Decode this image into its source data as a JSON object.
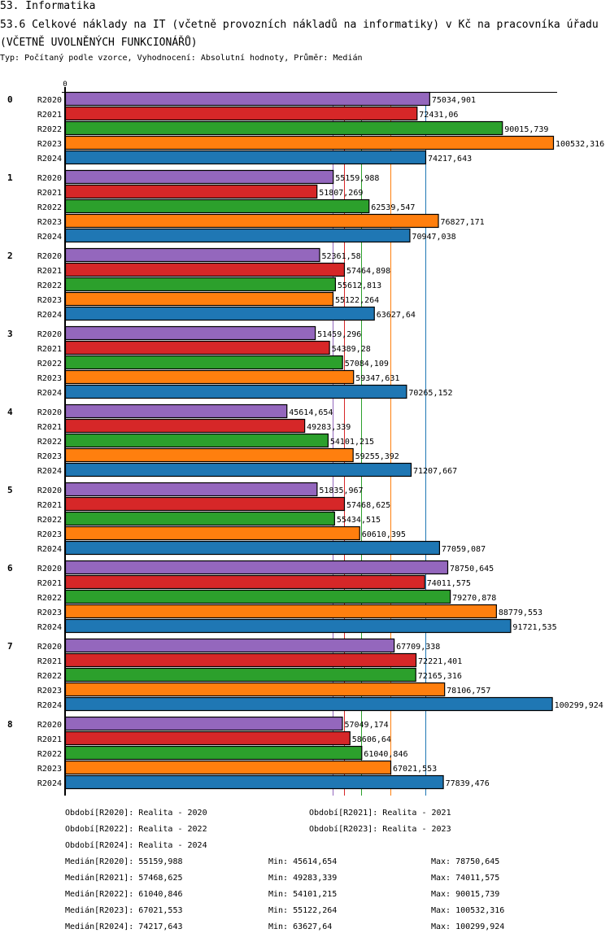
{
  "header": {
    "section": "53. Informatika",
    "title": "53.6 Celkové náklady na IT (včetně provozních nákladů na informatiky) v Kč na pracovníka úřadu (VČETNĚ UVOLNĚNÝCH FUNKCIONÁŘŮ)",
    "subtitle": "Typ: Počítaný podle vzorce, Vyhodnocení: Absolutní hodnoty, Průměr: Medián"
  },
  "chart_data": {
    "type": "bar",
    "orientation": "horizontal",
    "title": "53.6 Celkové náklady na IT (včetně provozních nákladů na informatiky) v Kč na pracovníka úřadu (VČETNĚ UVOLNĚNÝCH FUNKCIONÁŘŮ)",
    "xlabel": "",
    "ylabel": "",
    "x_tick_labels": [
      "0"
    ],
    "xlim": [
      0,
      100532.316
    ],
    "grid": false,
    "categories": [
      "0",
      "1",
      "2",
      "3",
      "4",
      "5",
      "6",
      "7",
      "8"
    ],
    "series": [
      {
        "name": "R2020",
        "color": "#9467bd",
        "value_labels": [
          "75034,901",
          "55159,988",
          "52361,58",
          "51459,296",
          "45614,654",
          "51835,967",
          "78750,645",
          "67709,338",
          "57049,174"
        ],
        "values": [
          75034.901,
          55159.988,
          52361.58,
          51459.296,
          45614.654,
          51835.967,
          78750.645,
          67709.338,
          57049.174
        ],
        "median": 55159.988
      },
      {
        "name": "R2021",
        "color": "#d62728",
        "value_labels": [
          "72431,06",
          "51807,269",
          "57464,898",
          "54389,28",
          "49283,339",
          "57468,625",
          "74011,575",
          "72221,401",
          "58606,64"
        ],
        "values": [
          72431.06,
          51807.269,
          57464.898,
          54389.28,
          49283.339,
          57468.625,
          74011.575,
          72221.401,
          58606.64
        ],
        "median": 57468.625
      },
      {
        "name": "R2022",
        "color": "#2ca02c",
        "value_labels": [
          "90015,739",
          "62539,547",
          "55612,813",
          "57084,109",
          "54101,215",
          "55434,515",
          "79270,878",
          "72165,316",
          "61040,846"
        ],
        "values": [
          90015.739,
          62539.547,
          55612.813,
          57084.109,
          54101.215,
          55434.515,
          79270.878,
          72165.316,
          61040.846
        ],
        "median": 61040.846
      },
      {
        "name": "R2023",
        "color": "#ff7f0e",
        "value_labels": [
          "100532,316",
          "76827,171",
          "55122,264",
          "59347,631",
          "59255,392",
          "60610,395",
          "88779,553",
          "78106,757",
          "67021,553"
        ],
        "values": [
          100532.316,
          76827.171,
          55122.264,
          59347.631,
          59255.392,
          60610.395,
          88779.553,
          78106.757,
          67021.553
        ],
        "median": 67021.553
      },
      {
        "name": "R2024",
        "color": "#1f77b4",
        "value_labels": [
          "74217,643",
          "70947,038",
          "63627,64",
          "70265,152",
          "71207,667",
          "77059,087",
          "91721,535",
          "100299,924",
          "77839,476"
        ],
        "values": [
          74217.643,
          70947.038,
          63627.64,
          70265.152,
          71207.667,
          77059.087,
          91721.535,
          100299.924,
          77839.476
        ],
        "median": 74217.643
      }
    ],
    "median_lines": true
  },
  "legend": {
    "periods": [
      "Období[R2020]: Realita - 2020",
      "Období[R2021]: Realita - 2021",
      "Období[R2022]: Realita - 2022",
      "Období[R2023]: Realita - 2023",
      "Období[R2024]: Realita - 2024"
    ],
    "stats": [
      {
        "median": "Medián[R2020]: 55159,988",
        "min": "Min: 45614,654",
        "max": "Max: 78750,645"
      },
      {
        "median": "Medián[R2021]: 57468,625",
        "min": "Min: 49283,339",
        "max": "Max: 74011,575"
      },
      {
        "median": "Medián[R2022]: 61040,846",
        "min": "Min: 54101,215",
        "max": "Max: 90015,739"
      },
      {
        "median": "Medián[R2023]: 67021,553",
        "min": "Min: 55122,264",
        "max": "Max: 100532,316"
      },
      {
        "median": "Medián[R2024]: 74217,643",
        "min": "Min: 63627,64",
        "max": "Max: 100299,924"
      }
    ]
  }
}
